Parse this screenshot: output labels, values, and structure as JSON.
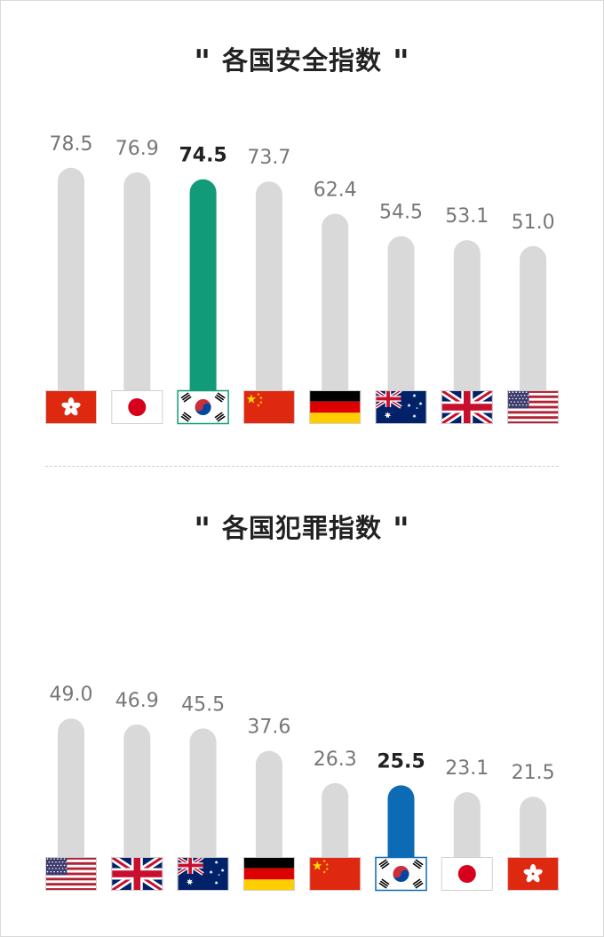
{
  "chart_data": [
    {
      "type": "bar",
      "title": "各国安全指数",
      "categories": [
        "Hong Kong",
        "Japan",
        "South Korea",
        "China",
        "Germany",
        "Australia",
        "United Kingdom",
        "United States"
      ],
      "flags": [
        "hk",
        "jp",
        "kr",
        "cn",
        "de",
        "au",
        "uk",
        "us"
      ],
      "values": [
        "78.5",
        "76.9",
        "74.5",
        "73.7",
        "62.4",
        "54.5",
        "53.1",
        "51.0"
      ],
      "highlight_index": 2,
      "colors": {
        "bar": "#d9d9d9",
        "highlight": "#129b79"
      },
      "ylim": [
        0,
        100
      ],
      "grid": false
    },
    {
      "type": "bar",
      "title": "各国犯罪指数",
      "categories": [
        "United States",
        "United Kingdom",
        "Australia",
        "Germany",
        "China",
        "South Korea",
        "Japan",
        "Hong Kong"
      ],
      "flags": [
        "us",
        "uk",
        "au",
        "de",
        "cn",
        "kr",
        "jp",
        "hk"
      ],
      "values": [
        "49.0",
        "46.9",
        "45.5",
        "37.6",
        "26.3",
        "25.5",
        "23.1",
        "21.5"
      ],
      "highlight_index": 5,
      "colors": {
        "bar": "#d9d9d9",
        "highlight": "#0d6ab5"
      },
      "ylim": [
        0,
        100
      ],
      "grid": false
    }
  ],
  "quote_mark": "\""
}
